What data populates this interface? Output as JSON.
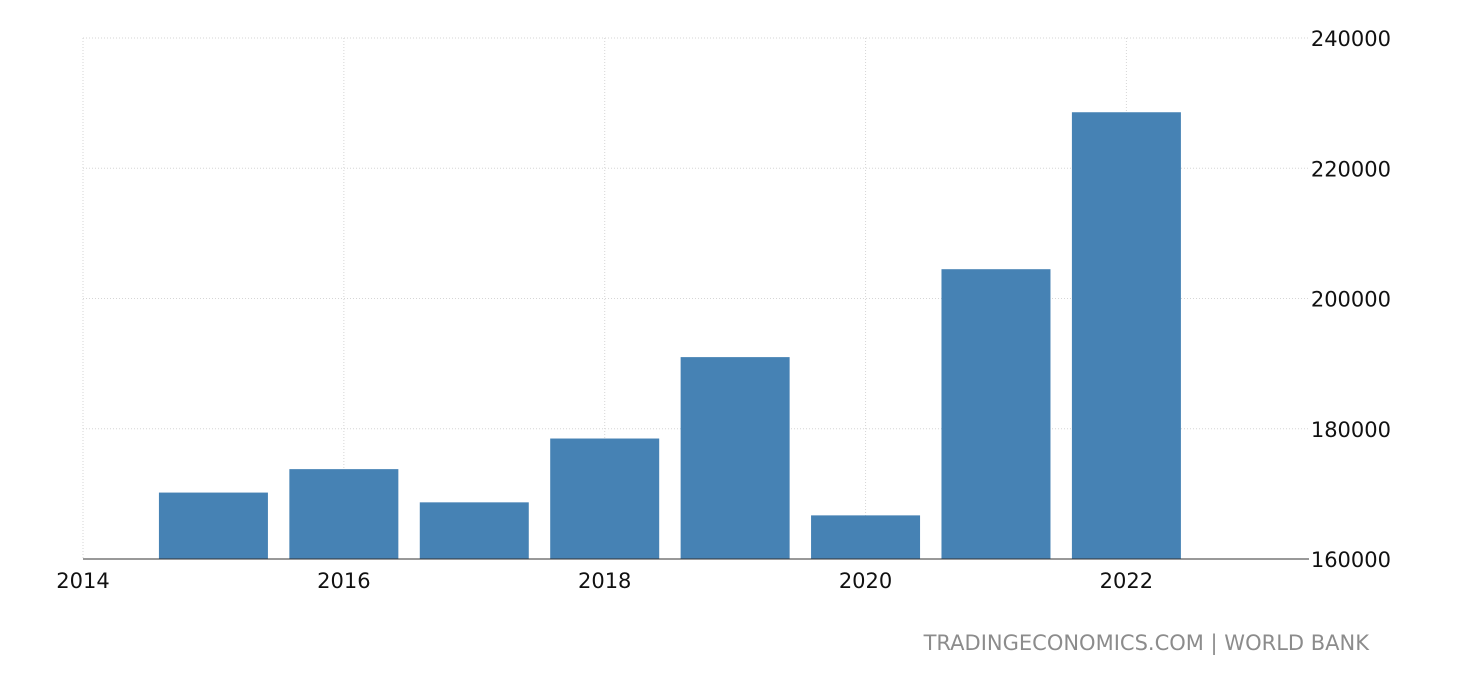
{
  "chart_data": {
    "type": "bar",
    "title": "",
    "xlabel": "",
    "ylabel": "",
    "x_ticks": [
      "2014",
      "2016",
      "2018",
      "2020",
      "2022"
    ],
    "y_ticks": [
      "160000",
      "180000",
      "200000",
      "220000",
      "240000"
    ],
    "x_range": [
      2014,
      2023.4
    ],
    "ylim": [
      160000,
      240000
    ],
    "y_axis_side": "right",
    "grid": true,
    "bar_color": "#4682b4",
    "series": [
      {
        "x": [
          2015,
          2016,
          2017,
          2018,
          2019,
          2020,
          2021,
          2022
        ],
        "values": [
          170200,
          173800,
          168700,
          178500,
          191000,
          166700,
          204500,
          228600
        ]
      }
    ]
  },
  "source": {
    "credit_text": "TRADINGECONOMICS.COM | WORLD BANK"
  }
}
